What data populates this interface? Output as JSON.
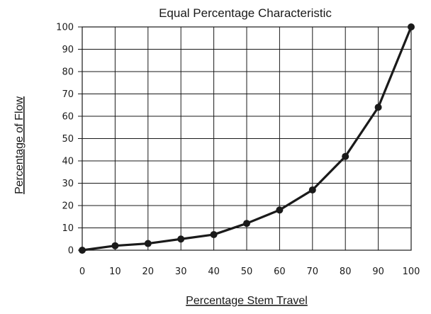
{
  "chart_data": {
    "type": "line",
    "title": "Equal Percentage Characteristic",
    "xlabel": "Percentage Stem Travel",
    "ylabel": "Percentage of Flow",
    "x": [
      0,
      10,
      20,
      30,
      40,
      50,
      60,
      70,
      80,
      90,
      100
    ],
    "series": [
      {
        "values": [
          0,
          2,
          3,
          5,
          7,
          12,
          18,
          27,
          42,
          64,
          100
        ]
      }
    ],
    "xlim": [
      0,
      100
    ],
    "ylim": [
      0,
      100
    ],
    "xticks": [
      "0",
      "10",
      "20",
      "30",
      "40",
      "50",
      "60",
      "70",
      "80",
      "90",
      "100"
    ],
    "yticks": [
      "0",
      "10",
      "20",
      "30",
      "40",
      "50",
      "60",
      "70",
      "80",
      "90",
      "100"
    ],
    "grid": true,
    "legend": "none",
    "colors": {
      "line": "#1a1a1a",
      "grid": "#1a1a1a"
    }
  }
}
